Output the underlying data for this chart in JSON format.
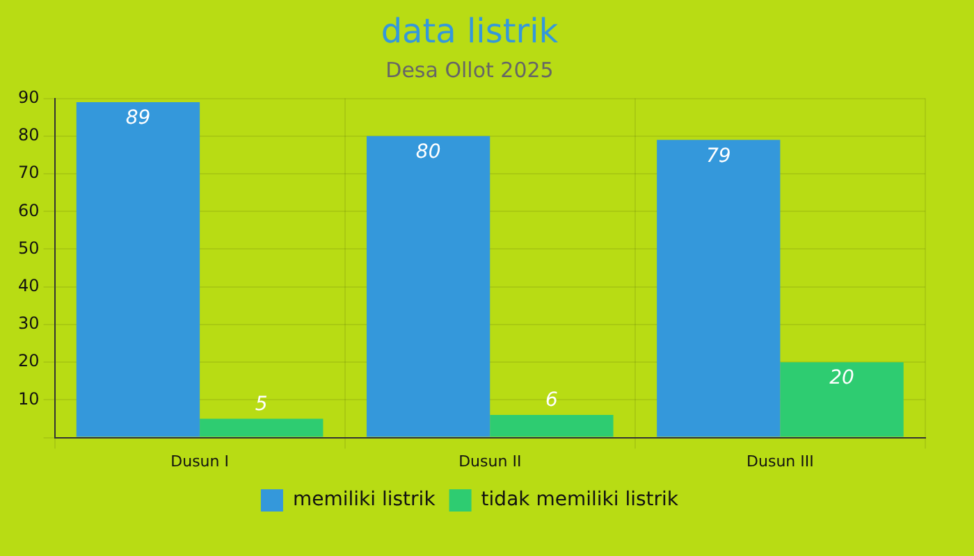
{
  "chart_data": {
    "type": "bar",
    "title": "data listrik",
    "subtitle": "Desa Ollot 2025",
    "categories": [
      "Dusun I",
      "Dusun II",
      "Dusun III"
    ],
    "series": [
      {
        "name": "memiliki listrik",
        "color": "#3498db",
        "values": [
          89,
          80,
          79
        ]
      },
      {
        "name": "tidak memiliki listrik",
        "color": "#2ecc71",
        "values": [
          5,
          6,
          20
        ]
      }
    ],
    "ylim": [
      0,
      90
    ],
    "yticks": [
      {
        "value": 0,
        "label": null
      },
      10,
      20,
      30,
      40,
      50,
      60,
      70,
      80,
      90
    ],
    "grid": true,
    "legend": "bottom",
    "data_labels": true
  }
}
